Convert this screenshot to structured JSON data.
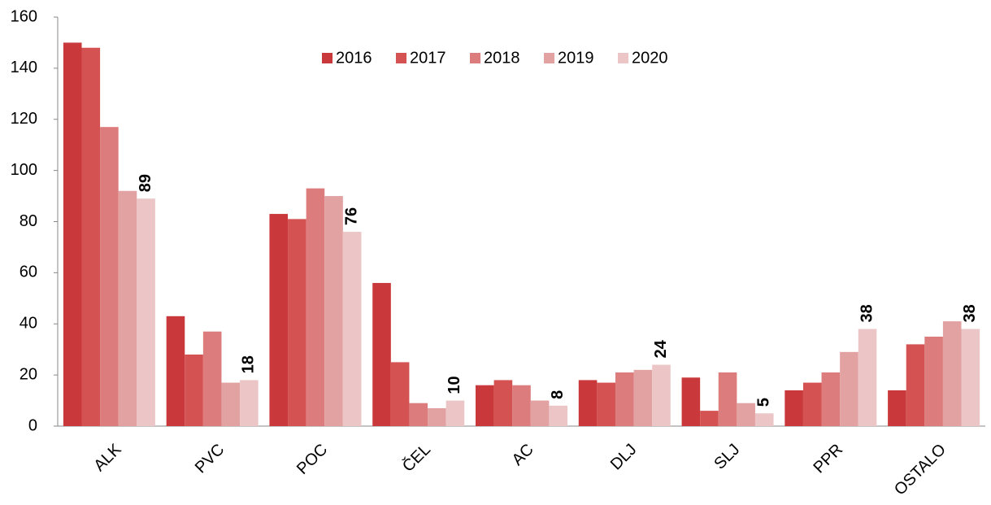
{
  "chart_data": {
    "type": "bar",
    "categories": [
      "ALK",
      "PVC",
      "POC",
      "ČEL",
      "AC",
      "DLJ",
      "SLJ",
      "PPR",
      "OSTALO"
    ],
    "series": [
      {
        "name": "2016",
        "color": "#c9383a",
        "values": [
          150,
          43,
          83,
          56,
          16,
          18,
          19,
          14,
          14
        ]
      },
      {
        "name": "2017",
        "color": "#d45352",
        "values": [
          148,
          28,
          81,
          25,
          18,
          17,
          6,
          17,
          32
        ]
      },
      {
        "name": "2018",
        "color": "#dc7c7c",
        "values": [
          117,
          37,
          93,
          9,
          16,
          21,
          21,
          21,
          35
        ]
      },
      {
        "name": "2019",
        "color": "#e3a2a2",
        "values": [
          92,
          17,
          90,
          7,
          10,
          22,
          9,
          29,
          41
        ]
      },
      {
        "name": "2020",
        "color": "#ecc6c6",
        "values": [
          89,
          18,
          76,
          10,
          8,
          24,
          5,
          38,
          38
        ],
        "data_labels": true
      }
    ],
    "ylim": [
      0,
      160
    ],
    "yticks": [
      0,
      20,
      40,
      60,
      80,
      100,
      120,
      140,
      160
    ],
    "grid": false,
    "legend": "top"
  }
}
